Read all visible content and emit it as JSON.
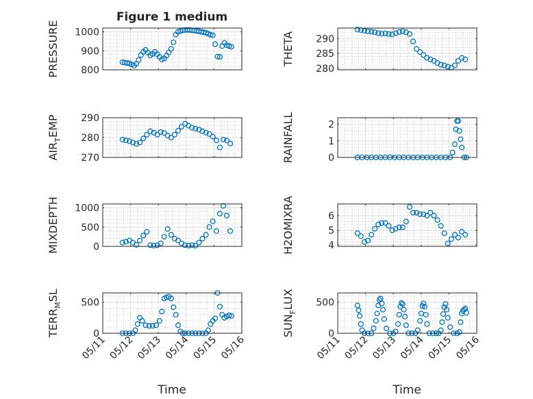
{
  "figure": {
    "title": "Figure 1 medium",
    "xlabel": "Time"
  },
  "colors": {
    "marker": "#0072BD",
    "axis": "#262626",
    "grid": "#dfdfdf",
    "minor_grid": "#b8b8b8"
  },
  "chart_data": [
    {
      "type": "scatter",
      "name": "PRESSURE",
      "ylabel": "PRESSURE",
      "xlim": [
        "05/11",
        "05/16"
      ],
      "ylim": [
        800,
        1020
      ],
      "yticks": [
        800,
        900,
        1000
      ],
      "xticklabels": [],
      "x": [
        "05/11 17:00",
        "05/11 19:00",
        "05/11 21:00",
        "05/11 23:00",
        "05/12 01:00",
        "05/12 03:00",
        "05/12 05:00",
        "05/12 07:00",
        "05/12 09:00",
        "05/12 11:00",
        "05/12 13:00",
        "05/12 15:00",
        "05/12 17:00",
        "05/12 19:00",
        "05/12 21:00",
        "05/12 23:00",
        "05/13 01:00",
        "05/13 03:00",
        "05/13 05:00",
        "05/13 07:00",
        "05/13 09:00",
        "05/13 11:00",
        "05/13 13:00",
        "05/13 15:00",
        "05/13 17:00",
        "05/13 19:00",
        "05/13 21:00",
        "05/13 23:00",
        "05/14 01:00",
        "05/14 03:00",
        "05/14 05:00",
        "05/14 07:00",
        "05/14 09:00",
        "05/14 11:00",
        "05/14 13:00",
        "05/14 15:00",
        "05/14 17:00",
        "05/14 19:00",
        "05/14 21:00",
        "05/14 23:00",
        "05/15 01:00",
        "05/15 03:00",
        "05/15 05:00",
        "05/15 07:00",
        "05/15 09:00",
        "05/15 11:00",
        "05/15 13:00",
        "05/15 15:00"
      ],
      "y": [
        840,
        838,
        836,
        834,
        828,
        822,
        832,
        852,
        878,
        895,
        905,
        890,
        876,
        884,
        895,
        882,
        868,
        855,
        860,
        875,
        892,
        910,
        945,
        985,
        1000,
        1005,
        1008,
        1010,
        1010,
        1010,
        1008,
        1007,
        1005,
        1003,
        1000,
        998,
        995,
        990,
        985,
        982,
        935,
        870,
        868,
        925,
        942,
        930,
        925,
        922
      ]
    },
    {
      "type": "scatter",
      "name": "THETA",
      "ylabel": "THETA",
      "xlim": [
        "05/11",
        "05/16"
      ],
      "ylim": [
        279.5,
        293.5
      ],
      "yticks": [
        280,
        285,
        290
      ],
      "xticklabels": [],
      "x": [
        "05/11 17:00",
        "05/11 20:00",
        "05/11 23:00",
        "05/12 02:00",
        "05/12 05:00",
        "05/12 08:00",
        "05/12 11:00",
        "05/12 14:00",
        "05/12 17:00",
        "05/12 20:00",
        "05/12 23:00",
        "05/13 02:00",
        "05/13 05:00",
        "05/13 08:00",
        "05/13 11:00",
        "05/13 14:00",
        "05/13 17:00",
        "05/13 20:00",
        "05/13 23:00",
        "05/14 02:00",
        "05/14 05:00",
        "05/14 08:00",
        "05/14 11:00",
        "05/14 14:00",
        "05/14 17:00",
        "05/14 20:00",
        "05/14 23:00",
        "05/15 02:00",
        "05/15 05:00",
        "05/15 08:00",
        "05/15 11:00",
        "05/15 14:00"
      ],
      "y": [
        293.0,
        292.8,
        292.6,
        292.4,
        292.3,
        292.1,
        291.8,
        291.6,
        291.7,
        291.5,
        291.4,
        291.8,
        292.2,
        292.4,
        292.1,
        291.5,
        289.0,
        286.5,
        285.5,
        284.5,
        283.5,
        283.0,
        282.5,
        281.8,
        281.2,
        281.0,
        280.5,
        280.2,
        281.0,
        282.5,
        283.5,
        283.0
      ]
    },
    {
      "type": "scatter",
      "name": "AIR_TEMP",
      "ylabel": "AIR_TEMP",
      "xlim": [
        "05/11",
        "05/16"
      ],
      "ylim": [
        270,
        290
      ],
      "yticks": [
        270,
        280,
        290
      ],
      "xticklabels": [],
      "x": [
        "05/11 17:00",
        "05/11 20:00",
        "05/11 23:00",
        "05/12 02:00",
        "05/12 05:00",
        "05/12 08:00",
        "05/12 11:00",
        "05/12 14:00",
        "05/12 17:00",
        "05/12 20:00",
        "05/12 23:00",
        "05/13 02:00",
        "05/13 05:00",
        "05/13 08:00",
        "05/13 11:00",
        "05/13 14:00",
        "05/13 17:00",
        "05/13 20:00",
        "05/13 23:00",
        "05/14 02:00",
        "05/14 05:00",
        "05/14 08:00",
        "05/14 11:00",
        "05/14 14:00",
        "05/14 17:00",
        "05/14 20:00",
        "05/14 23:00",
        "05/15 02:00",
        "05/15 05:00",
        "05/15 08:00",
        "05/15 11:00",
        "05/15 14:00"
      ],
      "y": [
        279.0,
        278.6,
        278.2,
        277.5,
        276.8,
        277.5,
        279.5,
        281.5,
        283.2,
        282.5,
        281.5,
        282.8,
        282.3,
        281.0,
        280.0,
        281.5,
        283.5,
        285.5,
        287.0,
        286.0,
        285.0,
        284.5,
        284.0,
        283.2,
        282.5,
        281.8,
        280.5,
        278.5,
        275.0,
        279.0,
        278.5,
        277.0
      ]
    },
    {
      "type": "scatter",
      "name": "RAINFALL",
      "ylabel": "RAINFALL",
      "xlim": [
        "05/11",
        "05/16"
      ],
      "ylim": [
        0,
        2.4
      ],
      "yticks": [
        0,
        1,
        2
      ],
      "xticklabels": [],
      "x": [
        "05/11 17:00",
        "05/11 21:00",
        "05/12 01:00",
        "05/12 05:00",
        "05/12 09:00",
        "05/12 13:00",
        "05/12 17:00",
        "05/12 21:00",
        "05/13 01:00",
        "05/13 05:00",
        "05/13 09:00",
        "05/13 13:00",
        "05/13 17:00",
        "05/13 21:00",
        "05/14 01:00",
        "05/14 05:00",
        "05/14 09:00",
        "05/14 13:00",
        "05/14 17:00",
        "05/14 21:00",
        "05/15 01:00",
        "05/15 03:00",
        "05/15 05:00",
        "05/15 06:00",
        "05/15 07:00",
        "05/15 08:00",
        "05/15 09:00",
        "05/15 10:00",
        "05/15 11:00",
        "05/15 13:00",
        "05/15 15:00"
      ],
      "y": [
        0,
        0,
        0,
        0,
        0,
        0,
        0,
        0,
        0,
        0,
        0,
        0,
        0,
        0,
        0,
        0,
        0,
        0,
        0,
        0,
        0,
        0.3,
        0.8,
        1.7,
        2.2,
        2.2,
        1.6,
        1.1,
        0.6,
        0,
        0
      ]
    },
    {
      "type": "scatter",
      "name": "MIXDEPTH",
      "ylabel": "MIXDEPTH",
      "xlim": [
        "05/11",
        "05/16"
      ],
      "ylim": [
        0,
        1100
      ],
      "yticks": [
        0,
        500,
        1000
      ],
      "xticklabels": [],
      "x": [
        "05/11 17:00",
        "05/11 20:00",
        "05/11 23:00",
        "05/12 02:00",
        "05/12 05:00",
        "05/12 08:00",
        "05/12 11:00",
        "05/12 14:00",
        "05/12 17:00",
        "05/12 20:00",
        "05/12 23:00",
        "05/13 02:00",
        "05/13 05:00",
        "05/13 08:00",
        "05/13 11:00",
        "05/13 14:00",
        "05/13 17:00",
        "05/13 20:00",
        "05/13 23:00",
        "05/14 02:00",
        "05/14 05:00",
        "05/14 08:00",
        "05/14 11:00",
        "05/14 14:00",
        "05/14 17:00",
        "05/14 20:00",
        "05/14 23:00",
        "05/15 02:00",
        "05/15 05:00",
        "05/15 08:00",
        "05/15 11:00",
        "05/15 14:00"
      ],
      "y": [
        100,
        120,
        150,
        100,
        40,
        150,
        280,
        380,
        30,
        20,
        30,
        80,
        250,
        450,
        300,
        200,
        150,
        80,
        30,
        20,
        30,
        20,
        100,
        200,
        300,
        500,
        650,
        400,
        850,
        1050,
        800,
        400
      ]
    },
    {
      "type": "scatter",
      "name": "H2OMIXRA",
      "ylabel": "H2OMIXRA",
      "xlim": [
        "05/11",
        "05/16"
      ],
      "ylim": [
        3.9,
        6.8
      ],
      "yticks": [
        4,
        5,
        6
      ],
      "xticklabels": [],
      "x": [
        "05/11 17:00",
        "05/11 20:00",
        "05/11 23:00",
        "05/12 02:00",
        "05/12 05:00",
        "05/12 08:00",
        "05/12 11:00",
        "05/12 14:00",
        "05/12 17:00",
        "05/12 20:00",
        "05/12 23:00",
        "05/13 02:00",
        "05/13 05:00",
        "05/13 08:00",
        "05/13 11:00",
        "05/13 14:00",
        "05/13 17:00",
        "05/13 20:00",
        "05/13 23:00",
        "05/14 02:00",
        "05/14 05:00",
        "05/14 08:00",
        "05/14 11:00",
        "05/14 14:00",
        "05/14 17:00",
        "05/14 20:00",
        "05/14 23:00",
        "05/15 02:00",
        "05/15 05:00",
        "05/15 08:00",
        "05/15 11:00",
        "05/15 14:00"
      ],
      "y": [
        4.8,
        4.6,
        4.2,
        4.3,
        4.7,
        5.1,
        5.4,
        5.5,
        5.5,
        5.3,
        5.0,
        5.1,
        5.2,
        5.2,
        5.6,
        6.6,
        6.2,
        6.2,
        6.1,
        6.1,
        6.0,
        6.2,
        6.0,
        5.7,
        5.3,
        4.8,
        4.1,
        4.4,
        4.7,
        4.5,
        4.9,
        4.7
      ]
    },
    {
      "type": "scatter",
      "name": "TERR_MSL",
      "ylabel": "TERR_MSL",
      "xlim": [
        "05/11",
        "05/16"
      ],
      "ylim": [
        0,
        650
      ],
      "yticks": [
        0,
        500
      ],
      "xticklabels": [
        "05/11",
        "05/12",
        "05/13",
        "05/14",
        "05/15",
        "05/16"
      ],
      "x": [
        "05/11 17:00",
        "05/11 20:00",
        "05/11 23:00",
        "05/12 02:00",
        "05/12 04:00",
        "05/12 06:00",
        "05/12 08:00",
        "05/12 10:00",
        "05/12 13:00",
        "05/12 16:00",
        "05/12 19:00",
        "05/12 22:00",
        "05/13 01:00",
        "05/13 03:00",
        "05/13 05:00",
        "05/13 07:00",
        "05/13 09:00",
        "05/13 11:00",
        "05/13 13:00",
        "05/13 15:00",
        "05/13 17:00",
        "05/13 19:00",
        "05/13 21:00",
        "05/13 23:00",
        "05/14 02:00",
        "05/14 05:00",
        "05/14 08:00",
        "05/14 11:00",
        "05/14 14:00",
        "05/14 17:00",
        "05/14 19:00",
        "05/14 21:00",
        "05/14 23:00",
        "05/15 01:00",
        "05/15 03:00",
        "05/15 05:00",
        "05/15 07:00",
        "05/15 09:00",
        "05/15 11:00",
        "05/15 13:00",
        "05/15 15:00"
      ],
      "y": [
        0,
        0,
        0,
        0,
        50,
        150,
        250,
        200,
        130,
        120,
        120,
        130,
        200,
        350,
        560,
        580,
        590,
        560,
        420,
        300,
        130,
        30,
        0,
        0,
        0,
        0,
        0,
        0,
        0,
        0,
        50,
        150,
        200,
        240,
        650,
        430,
        300,
        250,
        270,
        290,
        280
      ]
    },
    {
      "type": "scatter",
      "name": "SUN_FLUX",
      "ylabel": "SUN_FLUX",
      "xlim": [
        "05/11",
        "05/16"
      ],
      "ylim": [
        0,
        650
      ],
      "yticks": [
        0,
        500
      ],
      "xticklabels": [
        "05/11",
        "05/12",
        "05/13",
        "05/14",
        "05/15",
        "05/16"
      ],
      "x": [
        "05/11 17:00",
        "05/11 18:00",
        "05/11 19:00",
        "05/11 20:00",
        "05/11 21:00",
        "05/11 23:00",
        "05/12 02:00",
        "05/12 05:00",
        "05/12 07:00",
        "05/12 09:00",
        "05/12 10:00",
        "05/12 11:00",
        "05/12 12:00",
        "05/12 13:00",
        "05/12 14:00",
        "05/12 15:00",
        "05/12 16:00",
        "05/12 18:00",
        "05/12 21:00",
        "05/13 00:00",
        "05/13 02:00",
        "05/13 04:00",
        "05/13 05:00",
        "05/13 06:00",
        "05/13 07:00",
        "05/13 08:00",
        "05/13 09:00",
        "05/13 10:00",
        "05/13 11:00",
        "05/13 13:00",
        "05/13 16:00",
        "05/13 19:00",
        "05/13 21:00",
        "05/13 23:00",
        "05/14 00:00",
        "05/14 01:00",
        "05/14 02:00",
        "05/14 03:00",
        "05/14 04:00",
        "05/14 05:00",
        "05/14 07:00",
        "05/14 10:00",
        "05/14 13:00",
        "05/14 15:00",
        "05/14 17:00",
        "05/14 18:00",
        "05/14 19:00",
        "05/14 20:00",
        "05/14 21:00",
        "05/14 22:00",
        "05/14 23:00",
        "05/15 01:00",
        "05/15 04:00",
        "05/15 07:00",
        "05/15 09:00",
        "05/15 10:00",
        "05/15 11:00",
        "05/15 12:00",
        "05/15 13:00",
        "05/15 14:00",
        "05/15 15:00"
      ],
      "y": [
        450,
        370,
        280,
        150,
        50,
        0,
        0,
        0,
        80,
        200,
        320,
        450,
        540,
        560,
        480,
        380,
        230,
        80,
        0,
        0,
        30,
        150,
        300,
        430,
        490,
        470,
        380,
        270,
        130,
        0,
        0,
        0,
        50,
        200,
        320,
        440,
        480,
        430,
        300,
        150,
        0,
        0,
        0,
        0,
        50,
        180,
        310,
        420,
        470,
        380,
        250,
        100,
        0,
        0,
        20,
        180,
        320,
        360,
        380,
        400,
        330
      ]
    }
  ]
}
